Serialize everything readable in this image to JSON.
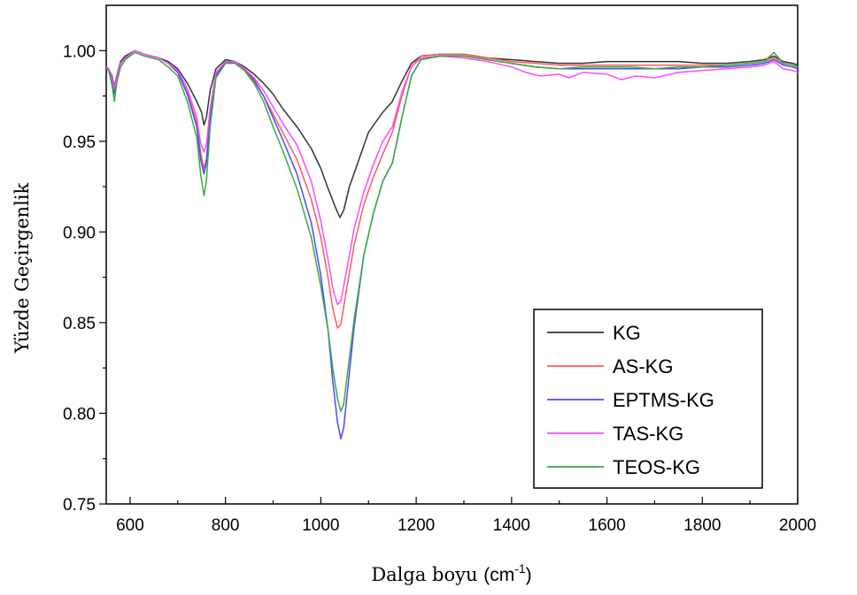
{
  "chart_data": {
    "type": "line",
    "xlabel": "Dalga boyu",
    "xlabel_unit_base": "(cm",
    "xlabel_unit_sup": "-1",
    "xlabel_unit_close": ")",
    "ylabel": "Yüzde Geçirgenlik",
    "xlim": [
      550,
      2000
    ],
    "ylim": [
      0.75,
      1.025
    ],
    "x_ticks": [
      600,
      800,
      1000,
      1200,
      1400,
      1600,
      1800,
      2000
    ],
    "y_ticks": [
      0.75,
      0.8,
      0.85,
      0.9,
      0.95,
      1.0
    ],
    "x_tick_labels": [
      "600",
      "800",
      "1000",
      "1200",
      "1400",
      "1600",
      "1800",
      "2000"
    ],
    "y_tick_labels": [
      "0.75",
      "0.80",
      "0.85",
      "0.90",
      "0.95",
      "1.00"
    ],
    "legend_position": "bottom-right",
    "grid": false,
    "series": [
      {
        "name": "KG",
        "color": "#333333",
        "points": [
          [
            550,
            0.991
          ],
          [
            555,
            0.99
          ],
          [
            562,
            0.986
          ],
          [
            567,
            0.98
          ],
          [
            572,
            0.986
          ],
          [
            580,
            0.994
          ],
          [
            590,
            0.997
          ],
          [
            610,
            1.0
          ],
          [
            630,
            0.998
          ],
          [
            660,
            0.996
          ],
          [
            680,
            0.994
          ],
          [
            700,
            0.99
          ],
          [
            720,
            0.982
          ],
          [
            740,
            0.972
          ],
          [
            750,
            0.966
          ],
          [
            755,
            0.959
          ],
          [
            760,
            0.963
          ],
          [
            768,
            0.978
          ],
          [
            780,
            0.99
          ],
          [
            800,
            0.995
          ],
          [
            820,
            0.994
          ],
          [
            840,
            0.991
          ],
          [
            860,
            0.987
          ],
          [
            880,
            0.982
          ],
          [
            900,
            0.976
          ],
          [
            920,
            0.968
          ],
          [
            950,
            0.958
          ],
          [
            980,
            0.946
          ],
          [
            1000,
            0.935
          ],
          [
            1015,
            0.924
          ],
          [
            1030,
            0.914
          ],
          [
            1040,
            0.908
          ],
          [
            1048,
            0.912
          ],
          [
            1060,
            0.925
          ],
          [
            1080,
            0.94
          ],
          [
            1100,
            0.955
          ],
          [
            1130,
            0.966
          ],
          [
            1150,
            0.972
          ],
          [
            1170,
            0.983
          ],
          [
            1190,
            0.993
          ],
          [
            1210,
            0.997
          ],
          [
            1250,
            0.998
          ],
          [
            1300,
            0.998
          ],
          [
            1350,
            0.996
          ],
          [
            1400,
            0.995
          ],
          [
            1450,
            0.994
          ],
          [
            1500,
            0.993
          ],
          [
            1550,
            0.993
          ],
          [
            1600,
            0.994
          ],
          [
            1650,
            0.994
          ],
          [
            1700,
            0.994
          ],
          [
            1750,
            0.994
          ],
          [
            1800,
            0.993
          ],
          [
            1850,
            0.993
          ],
          [
            1900,
            0.994
          ],
          [
            1930,
            0.995
          ],
          [
            1950,
            0.997
          ],
          [
            1970,
            0.994
          ],
          [
            1990,
            0.993
          ],
          [
            2000,
            0.992
          ]
        ]
      },
      {
        "name": "AS-KG",
        "color": "#ff5a5a",
        "points": [
          [
            550,
            0.991
          ],
          [
            555,
            0.99
          ],
          [
            562,
            0.984
          ],
          [
            567,
            0.977
          ],
          [
            572,
            0.984
          ],
          [
            580,
            0.993
          ],
          [
            590,
            0.996
          ],
          [
            610,
            1.0
          ],
          [
            630,
            0.998
          ],
          [
            660,
            0.996
          ],
          [
            680,
            0.993
          ],
          [
            700,
            0.988
          ],
          [
            720,
            0.977
          ],
          [
            740,
            0.96
          ],
          [
            748,
            0.944
          ],
          [
            755,
            0.935
          ],
          [
            760,
            0.94
          ],
          [
            768,
            0.964
          ],
          [
            780,
            0.987
          ],
          [
            800,
            0.994
          ],
          [
            820,
            0.993
          ],
          [
            840,
            0.989
          ],
          [
            860,
            0.983
          ],
          [
            880,
            0.975
          ],
          [
            900,
            0.965
          ],
          [
            920,
            0.955
          ],
          [
            950,
            0.94
          ],
          [
            980,
            0.918
          ],
          [
            1000,
            0.897
          ],
          [
            1015,
            0.875
          ],
          [
            1025,
            0.858
          ],
          [
            1035,
            0.847
          ],
          [
            1042,
            0.849
          ],
          [
            1055,
            0.87
          ],
          [
            1070,
            0.893
          ],
          [
            1090,
            0.915
          ],
          [
            1110,
            0.93
          ],
          [
            1130,
            0.943
          ],
          [
            1150,
            0.955
          ],
          [
            1170,
            0.975
          ],
          [
            1190,
            0.991
          ],
          [
            1210,
            0.997
          ],
          [
            1250,
            0.998
          ],
          [
            1300,
            0.998
          ],
          [
            1350,
            0.996
          ],
          [
            1400,
            0.994
          ],
          [
            1450,
            0.993
          ],
          [
            1500,
            0.992
          ],
          [
            1550,
            0.992
          ],
          [
            1600,
            0.992
          ],
          [
            1650,
            0.992
          ],
          [
            1700,
            0.992
          ],
          [
            1750,
            0.992
          ],
          [
            1800,
            0.992
          ],
          [
            1850,
            0.992
          ],
          [
            1900,
            0.993
          ],
          [
            1930,
            0.994
          ],
          [
            1950,
            0.996
          ],
          [
            1970,
            0.993
          ],
          [
            1990,
            0.992
          ],
          [
            2000,
            0.991
          ]
        ]
      },
      {
        "name": "EPTMS-KG",
        "color": "#4a4aff",
        "points": [
          [
            550,
            0.991
          ],
          [
            555,
            0.99
          ],
          [
            562,
            0.983
          ],
          [
            567,
            0.976
          ],
          [
            572,
            0.984
          ],
          [
            580,
            0.993
          ],
          [
            590,
            0.996
          ],
          [
            610,
            1.0
          ],
          [
            630,
            0.998
          ],
          [
            660,
            0.996
          ],
          [
            680,
            0.993
          ],
          [
            700,
            0.988
          ],
          [
            720,
            0.976
          ],
          [
            740,
            0.958
          ],
          [
            748,
            0.94
          ],
          [
            755,
            0.932
          ],
          [
            760,
            0.938
          ],
          [
            768,
            0.962
          ],
          [
            780,
            0.986
          ],
          [
            800,
            0.994
          ],
          [
            820,
            0.993
          ],
          [
            840,
            0.99
          ],
          [
            860,
            0.984
          ],
          [
            880,
            0.975
          ],
          [
            900,
            0.963
          ],
          [
            920,
            0.951
          ],
          [
            950,
            0.932
          ],
          [
            980,
            0.905
          ],
          [
            1000,
            0.876
          ],
          [
            1015,
            0.846
          ],
          [
            1025,
            0.818
          ],
          [
            1035,
            0.795
          ],
          [
            1042,
            0.786
          ],
          [
            1048,
            0.792
          ],
          [
            1055,
            0.81
          ],
          [
            1070,
            0.848
          ],
          [
            1090,
            0.887
          ],
          [
            1110,
            0.91
          ],
          [
            1130,
            0.928
          ],
          [
            1150,
            0.938
          ],
          [
            1170,
            0.963
          ],
          [
            1190,
            0.986
          ],
          [
            1210,
            0.995
          ],
          [
            1250,
            0.997
          ],
          [
            1300,
            0.997
          ],
          [
            1350,
            0.995
          ],
          [
            1400,
            0.993
          ],
          [
            1450,
            0.991
          ],
          [
            1500,
            0.99
          ],
          [
            1550,
            0.99
          ],
          [
            1600,
            0.99
          ],
          [
            1650,
            0.99
          ],
          [
            1700,
            0.99
          ],
          [
            1750,
            0.99
          ],
          [
            1800,
            0.991
          ],
          [
            1850,
            0.991
          ],
          [
            1900,
            0.992
          ],
          [
            1930,
            0.993
          ],
          [
            1950,
            0.995
          ],
          [
            1970,
            0.992
          ],
          [
            1990,
            0.991
          ],
          [
            2000,
            0.99
          ]
        ]
      },
      {
        "name": "TAS-KG",
        "color": "#ff4aff",
        "points": [
          [
            550,
            0.991
          ],
          [
            555,
            0.99
          ],
          [
            562,
            0.985
          ],
          [
            567,
            0.979
          ],
          [
            572,
            0.985
          ],
          [
            580,
            0.993
          ],
          [
            590,
            0.996
          ],
          [
            610,
            1.0
          ],
          [
            630,
            0.998
          ],
          [
            660,
            0.996
          ],
          [
            680,
            0.993
          ],
          [
            700,
            0.989
          ],
          [
            720,
            0.979
          ],
          [
            740,
            0.963
          ],
          [
            748,
            0.949
          ],
          [
            755,
            0.944
          ],
          [
            760,
            0.948
          ],
          [
            768,
            0.968
          ],
          [
            780,
            0.988
          ],
          [
            800,
            0.994
          ],
          [
            820,
            0.994
          ],
          [
            840,
            0.99
          ],
          [
            860,
            0.985
          ],
          [
            880,
            0.978
          ],
          [
            900,
            0.969
          ],
          [
            920,
            0.96
          ],
          [
            950,
            0.948
          ],
          [
            980,
            0.928
          ],
          [
            1000,
            0.906
          ],
          [
            1015,
            0.885
          ],
          [
            1025,
            0.869
          ],
          [
            1035,
            0.86
          ],
          [
            1042,
            0.862
          ],
          [
            1055,
            0.88
          ],
          [
            1070,
            0.902
          ],
          [
            1090,
            0.922
          ],
          [
            1110,
            0.937
          ],
          [
            1130,
            0.95
          ],
          [
            1150,
            0.958
          ],
          [
            1170,
            0.977
          ],
          [
            1190,
            0.991
          ],
          [
            1210,
            0.996
          ],
          [
            1250,
            0.997
          ],
          [
            1300,
            0.996
          ],
          [
            1350,
            0.994
          ],
          [
            1400,
            0.991
          ],
          [
            1430,
            0.988
          ],
          [
            1460,
            0.986
          ],
          [
            1500,
            0.987
          ],
          [
            1520,
            0.985
          ],
          [
            1550,
            0.988
          ],
          [
            1600,
            0.987
          ],
          [
            1630,
            0.984
          ],
          [
            1660,
            0.986
          ],
          [
            1700,
            0.985
          ],
          [
            1750,
            0.988
          ],
          [
            1800,
            0.989
          ],
          [
            1850,
            0.99
          ],
          [
            1900,
            0.991
          ],
          [
            1930,
            0.992
          ],
          [
            1950,
            0.994
          ],
          [
            1970,
            0.99
          ],
          [
            1990,
            0.989
          ],
          [
            2000,
            0.988
          ]
        ]
      },
      {
        "name": "TEOS-KG",
        "color": "#3aaa3a",
        "points": [
          [
            550,
            0.99
          ],
          [
            555,
            0.989
          ],
          [
            562,
            0.981
          ],
          [
            567,
            0.972
          ],
          [
            572,
            0.982
          ],
          [
            580,
            0.991
          ],
          [
            590,
            0.995
          ],
          [
            610,
            0.999
          ],
          [
            630,
            0.997
          ],
          [
            660,
            0.995
          ],
          [
            680,
            0.991
          ],
          [
            700,
            0.986
          ],
          [
            720,
            0.972
          ],
          [
            740,
            0.952
          ],
          [
            748,
            0.932
          ],
          [
            755,
            0.92
          ],
          [
            760,
            0.928
          ],
          [
            768,
            0.958
          ],
          [
            780,
            0.985
          ],
          [
            800,
            0.993
          ],
          [
            820,
            0.993
          ],
          [
            840,
            0.989
          ],
          [
            860,
            0.982
          ],
          [
            880,
            0.972
          ],
          [
            900,
            0.958
          ],
          [
            920,
            0.945
          ],
          [
            950,
            0.924
          ],
          [
            980,
            0.897
          ],
          [
            1000,
            0.87
          ],
          [
            1015,
            0.846
          ],
          [
            1025,
            0.825
          ],
          [
            1035,
            0.808
          ],
          [
            1042,
            0.801
          ],
          [
            1048,
            0.805
          ],
          [
            1055,
            0.82
          ],
          [
            1070,
            0.852
          ],
          [
            1090,
            0.887
          ],
          [
            1110,
            0.91
          ],
          [
            1130,
            0.928
          ],
          [
            1150,
            0.938
          ],
          [
            1170,
            0.963
          ],
          [
            1190,
            0.986
          ],
          [
            1210,
            0.995
          ],
          [
            1250,
            0.997
          ],
          [
            1300,
            0.997
          ],
          [
            1350,
            0.995
          ],
          [
            1400,
            0.993
          ],
          [
            1450,
            0.991
          ],
          [
            1500,
            0.99
          ],
          [
            1550,
            0.991
          ],
          [
            1600,
            0.991
          ],
          [
            1650,
            0.991
          ],
          [
            1700,
            0.99
          ],
          [
            1750,
            0.991
          ],
          [
            1800,
            0.991
          ],
          [
            1850,
            0.992
          ],
          [
            1900,
            0.993
          ],
          [
            1930,
            0.994
          ],
          [
            1950,
            0.999
          ],
          [
            1970,
            0.993
          ],
          [
            1990,
            0.992
          ],
          [
            2000,
            0.991
          ]
        ]
      }
    ]
  }
}
